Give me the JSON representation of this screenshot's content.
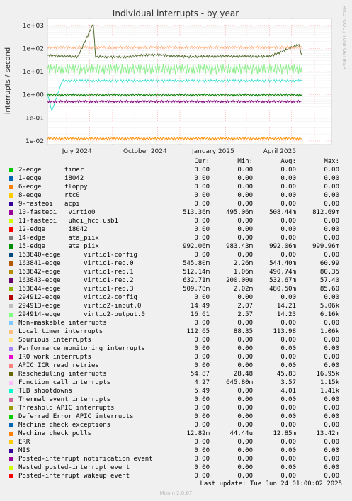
{
  "chart_data": {
    "type": "line",
    "title": "Individual interrupts - by year",
    "ylabel": "interrupts / second",
    "yscale": "log",
    "ylim": [
      0.007,
      2000
    ],
    "yticks": [
      "1e+03",
      "1e+02",
      "1e+01",
      "1e+00",
      "1e-01",
      "1e-02"
    ],
    "xticks": [
      "July 2024",
      "October 2024",
      "January 2025",
      "April 2025"
    ],
    "xrange": [
      "2024-06-05",
      "2025-06-24"
    ],
    "grid": true,
    "side_note": "RRDTOOL / TOBI OETIKER",
    "series": [
      {
        "name": "Rescheduling interrupts",
        "color": "#556b2f",
        "values": [
          [
            0,
            50
          ],
          [
            20,
            48
          ],
          [
            41,
            44
          ],
          [
            62,
            1200
          ],
          [
            65,
            45
          ],
          [
            100,
            42
          ],
          [
            140,
            55
          ],
          [
            190,
            44
          ],
          [
            240,
            47
          ],
          [
            300,
            45
          ],
          [
            340,
            150
          ],
          [
            344,
            50
          ]
        ]
      },
      {
        "name": "Local timer interrupts",
        "color": "#ffb380",
        "values": [
          [
            0,
            112
          ],
          [
            344,
            113
          ]
        ]
      },
      {
        "name": "294914-edge virtio2-output.0",
        "color": "#90ee90",
        "values": [
          [
            0,
            14
          ],
          [
            170,
            14
          ],
          [
            200,
            14
          ],
          [
            344,
            14
          ]
        ]
      },
      {
        "name": "TLB shootdowns",
        "color": "#40e0d0",
        "values": [
          [
            0,
            1.2
          ],
          [
            6,
            0.2
          ],
          [
            20,
            4
          ],
          [
            344,
            4
          ]
        ]
      },
      {
        "name": "15-edge ata_piix",
        "color": "#008000",
        "values": [
          [
            0,
            0.99
          ],
          [
            344,
            0.99
          ]
        ]
      },
      {
        "name": "10-fasteoi virtio0",
        "color": "#800080",
        "values": [
          [
            0,
            0.51
          ],
          [
            344,
            0.51
          ]
        ]
      },
      {
        "name": "Machine check polls",
        "color": "#ff8c00",
        "values": [
          [
            0,
            0.0128
          ],
          [
            344,
            0.0128
          ]
        ]
      }
    ]
  },
  "legend": {
    "headers": {
      "cur": "Cur:",
      "min": "Min:",
      "avg": "Avg:",
      "max": "Max:"
    },
    "rows": [
      {
        "label": "2-edge      timer",
        "color": "#00cc00",
        "cur": "0.00",
        "min": "0.00",
        "avg": "0.00",
        "max": "0.00"
      },
      {
        "label": "1-edge      i8042",
        "color": "#0066b3",
        "cur": "0.00",
        "min": "0.00",
        "avg": "0.00",
        "max": "0.00"
      },
      {
        "label": "6-edge      floppy",
        "color": "#ff8000",
        "cur": "0.00",
        "min": "0.00",
        "avg": "0.00",
        "max": "0.00"
      },
      {
        "label": "8-edge      rtc0",
        "color": "#ffcc00",
        "cur": "0.00",
        "min": "0.00",
        "avg": "0.00",
        "max": "0.00"
      },
      {
        "label": "9-fasteoi   acpi",
        "color": "#330099",
        "cur": "0.00",
        "min": "0.00",
        "avg": "0.00",
        "max": "0.00"
      },
      {
        "label": "10-fasteoi   virtio0",
        "color": "#990099",
        "cur": "513.36m",
        "min": "495.06m",
        "avg": "508.44m",
        "max": "812.69m"
      },
      {
        "label": "11-fasteoi   uhci_hcd:usb1",
        "color": "#ccff00",
        "cur": "0.00",
        "min": "0.00",
        "avg": "0.00",
        "max": "0.00"
      },
      {
        "label": "12-edge      i8042",
        "color": "#ff0000",
        "cur": "0.00",
        "min": "0.00",
        "avg": "0.00",
        "max": "0.00"
      },
      {
        "label": "14-edge      ata_piix",
        "color": "#808080",
        "cur": "0.00",
        "min": "0.00",
        "avg": "0.00",
        "max": "0.00"
      },
      {
        "label": "15-edge      ata_piix",
        "color": "#008f00",
        "cur": "992.06m",
        "min": "983.43m",
        "avg": "992.06m",
        "max": "999.96m"
      },
      {
        "label": "163840-edge      virtio1-config",
        "color": "#00487d",
        "cur": "0.00",
        "min": "0.00",
        "avg": "0.00",
        "max": "0.00"
      },
      {
        "label": "163841-edge      virtio1-req.0",
        "color": "#b35a00",
        "cur": "545.80m",
        "min": "2.26m",
        "avg": "544.40m",
        "max": "60.99"
      },
      {
        "label": "163842-edge      virtio1-req.1",
        "color": "#b38f00",
        "cur": "512.14m",
        "min": "1.06m",
        "avg": "490.74m",
        "max": "80.35"
      },
      {
        "label": "163843-edge      virtio1-req.2",
        "color": "#6b006b",
        "cur": "632.71m",
        "min": "200.00u",
        "avg": "532.67m",
        "max": "57.40"
      },
      {
        "label": "163844-edge      virtio1-req.3",
        "color": "#8fb300",
        "cur": "509.78m",
        "min": "2.02m",
        "avg": "480.50m",
        "max": "85.60"
      },
      {
        "label": "294912-edge      virtio2-config",
        "color": "#b30000",
        "cur": "0.00",
        "min": "0.00",
        "avg": "0.00",
        "max": "0.00"
      },
      {
        "label": "294913-edge      virtio2-input.0",
        "color": "#bebebe",
        "cur": "14.49",
        "min": "2.07",
        "avg": "14.21",
        "max": "5.06k"
      },
      {
        "label": "294914-edge      virtio2-output.0",
        "color": "#80ff80",
        "cur": "16.61",
        "min": "2.57",
        "avg": "14.23",
        "max": "6.16k"
      },
      {
        "label": "Non-maskable interrupts",
        "color": "#80c9ff",
        "cur": "0.00",
        "min": "0.00",
        "avg": "0.00",
        "max": "0.00"
      },
      {
        "label": "Local timer interrupts",
        "color": "#ffc080",
        "cur": "112.65",
        "min": "88.35",
        "avg": "113.98",
        "max": "1.06k"
      },
      {
        "label": "Spurious interrupts",
        "color": "#ffe680",
        "cur": "0.00",
        "min": "0.00",
        "avg": "0.00",
        "max": "0.00"
      },
      {
        "label": "Performance monitoring interrupts",
        "color": "#aa80ff",
        "cur": "0.00",
        "min": "0.00",
        "avg": "0.00",
        "max": "0.00"
      },
      {
        "label": "IRQ work interrupts",
        "color": "#ee00cc",
        "cur": "0.00",
        "min": "0.00",
        "avg": "0.00",
        "max": "0.00"
      },
      {
        "label": "APIC ICR read retries",
        "color": "#ff8080",
        "cur": "0.00",
        "min": "0.00",
        "avg": "0.00",
        "max": "0.00"
      },
      {
        "label": "Rescheduling interrupts",
        "color": "#666600",
        "cur": "54.87",
        "min": "28.48",
        "avg": "45.83",
        "max": "16.95k"
      },
      {
        "label": "Function call interrupts",
        "color": "#ffbfff",
        "cur": "4.27",
        "min": "645.80m",
        "avg": "3.57",
        "max": "1.15k"
      },
      {
        "label": "TLB shootdowns",
        "color": "#00ffcc",
        "cur": "5.49",
        "min": "0.00",
        "avg": "4.01",
        "max": "1.41k"
      },
      {
        "label": "Thermal event interrupts",
        "color": "#cc6699",
        "cur": "0.00",
        "min": "0.00",
        "avg": "0.00",
        "max": "0.00"
      },
      {
        "label": "Threshold APIC interrupts",
        "color": "#999900",
        "cur": "0.00",
        "min": "0.00",
        "avg": "0.00",
        "max": "0.00"
      },
      {
        "label": "Deferred Error APIC interrupts",
        "color": "#00cc00",
        "cur": "0.00",
        "min": "0.00",
        "avg": "0.00",
        "max": "0.00"
      },
      {
        "label": "Machine check exceptions",
        "color": "#0066b3",
        "cur": "0.00",
        "min": "0.00",
        "avg": "0.00",
        "max": "0.00"
      },
      {
        "label": "Machine check polls",
        "color": "#ff8000",
        "cur": "12.82m",
        "min": "44.44u",
        "avg": "12.85m",
        "max": "13.42m"
      },
      {
        "label": "ERR",
        "color": "#ffcc00",
        "cur": "0.00",
        "min": "0.00",
        "avg": "0.00",
        "max": "0.00"
      },
      {
        "label": "MIS",
        "color": "#330099",
        "cur": "0.00",
        "min": "0.00",
        "avg": "0.00",
        "max": "0.00"
      },
      {
        "label": "Posted-interrupt notification event",
        "color": "#990099",
        "cur": "0.00",
        "min": "0.00",
        "avg": "0.00",
        "max": "0.00"
      },
      {
        "label": "Nested posted-interrupt event",
        "color": "#ccff00",
        "cur": "0.00",
        "min": "0.00",
        "avg": "0.00",
        "max": "0.00"
      },
      {
        "label": "Posted-interrupt wakeup event",
        "color": "#ff0000",
        "cur": "0.00",
        "min": "0.00",
        "avg": "0.00",
        "max": "0.00"
      }
    ]
  },
  "footer": {
    "last_update": "Last update: Tue Jun 24 01:00:02 2025",
    "version": "Munin 2.0.67"
  }
}
